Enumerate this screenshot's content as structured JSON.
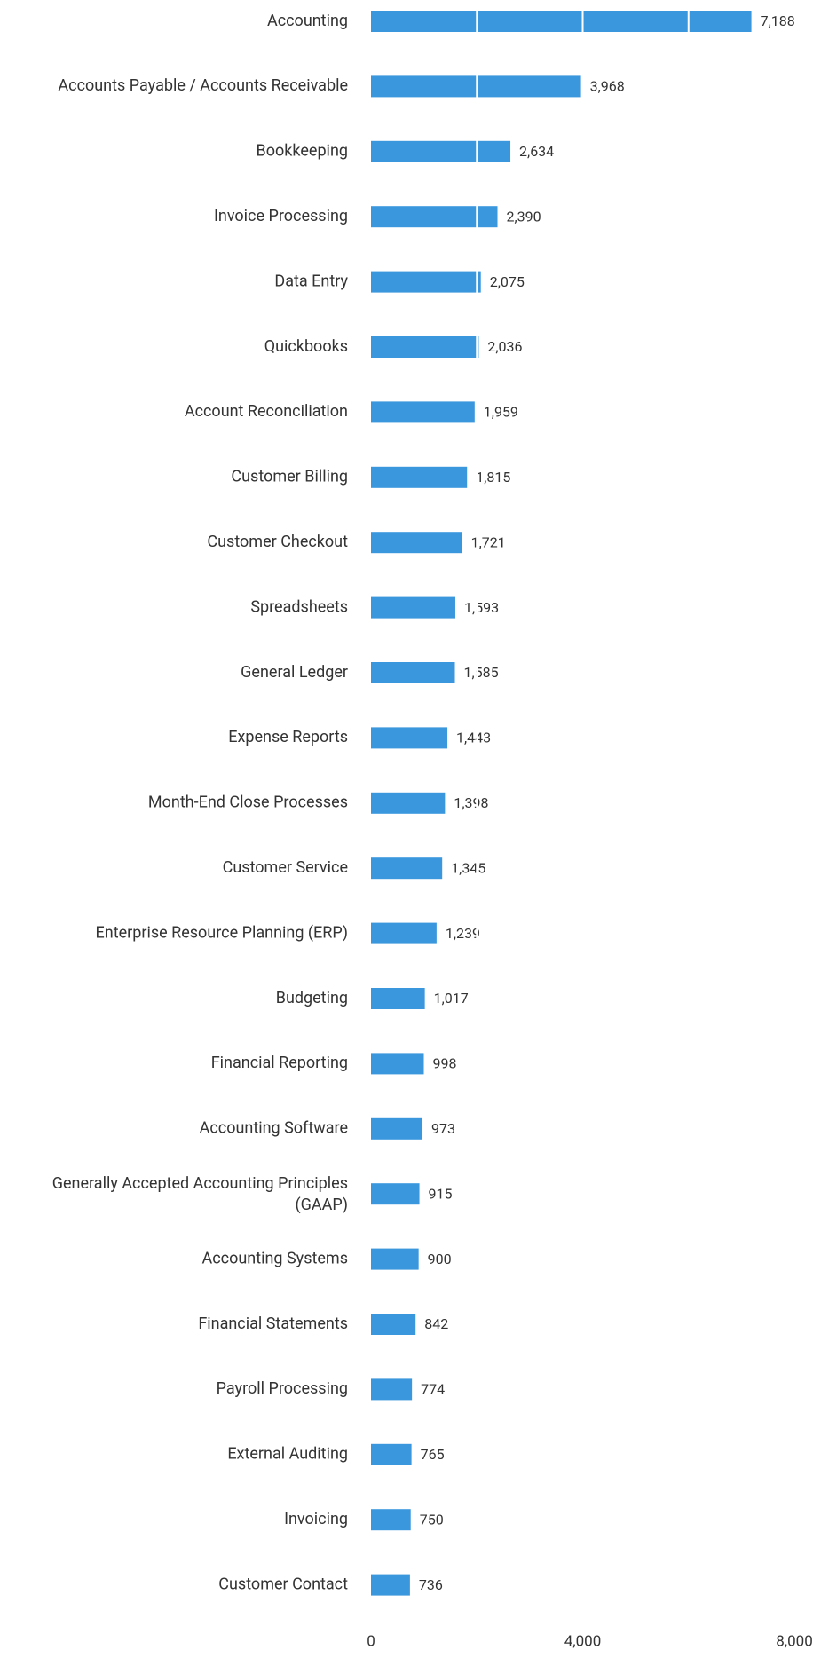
{
  "chart_data": {
    "type": "bar",
    "orientation": "horizontal",
    "categories": [
      "Accounting",
      "Accounts Payable / Accounts Receivable",
      "Bookkeeping",
      "Invoice Processing",
      "Data Entry",
      "Quickbooks",
      "Account Reconciliation",
      "Customer Billing",
      "Customer Checkout",
      "Spreadsheets",
      "General Ledger",
      "Expense Reports",
      "Month-End Close Processes",
      "Customer Service",
      "Enterprise Resource Planning (ERP)",
      "Budgeting",
      "Financial Reporting",
      "Accounting Software",
      "Generally Accepted Accounting Principles (GAAP)",
      "Accounting Systems",
      "Financial Statements",
      "Payroll Processing",
      "External Auditing",
      "Invoicing",
      "Customer Contact"
    ],
    "values": [
      7188,
      3968,
      2634,
      2390,
      2075,
      2036,
      1959,
      1815,
      1721,
      1593,
      1585,
      1443,
      1398,
      1345,
      1239,
      1017,
      998,
      973,
      915,
      900,
      842,
      774,
      765,
      750,
      736
    ],
    "value_labels": [
      "7,188",
      "3,968",
      "2,634",
      "2,390",
      "2,075",
      "2,036",
      "1,959",
      "1,815",
      "1,721",
      "1,593",
      "1,585",
      "1,443",
      "1,398",
      "1,345",
      "1,239",
      "1,017",
      "998",
      "973",
      "915",
      "900",
      "842",
      "774",
      "765",
      "750",
      "736"
    ],
    "color": "#3a97dd",
    "xlim": [
      0,
      8000
    ],
    "xticks": [
      0,
      {
        "value": 4000,
        "label": "4,000"
      },
      {
        "value": 8000,
        "label": "8,000"
      }
    ],
    "minor_xticks": [
      2000,
      6000
    ],
    "grid": true
  }
}
